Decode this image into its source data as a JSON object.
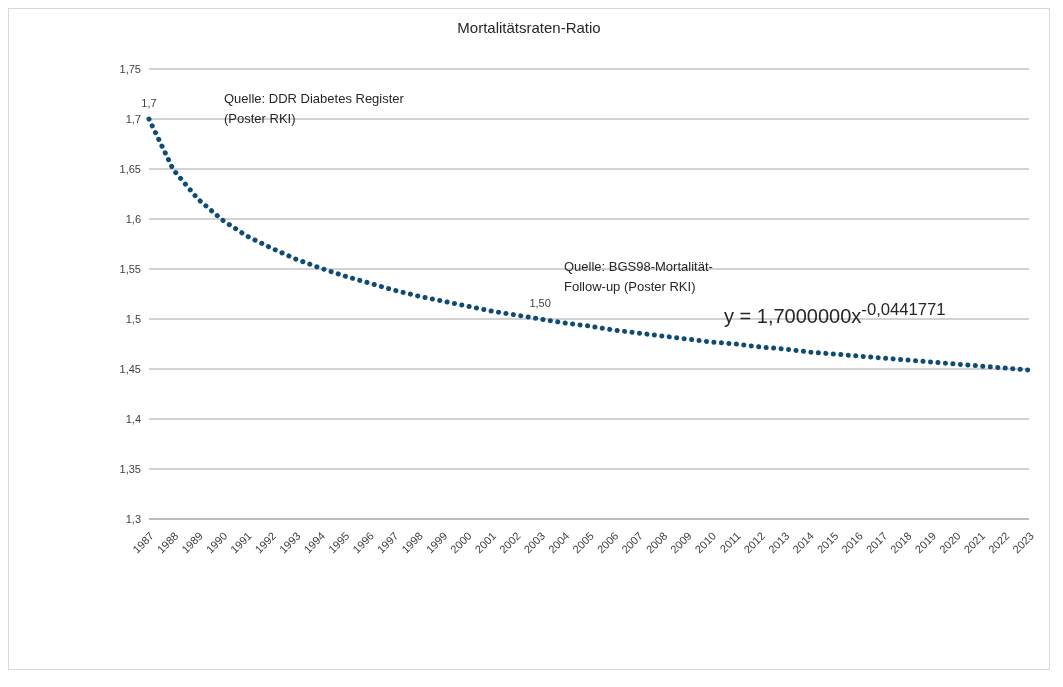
{
  "chart_data": {
    "type": "line",
    "title": "Mortalitätsraten-Ratio",
    "categories": [
      "1987",
      "1988",
      "1989",
      "1990",
      "1991",
      "1992",
      "1993",
      "1994",
      "1995",
      "1996",
      "1997",
      "1998",
      "1999",
      "2000",
      "2001",
      "2002",
      "2003",
      "2004",
      "2005",
      "2006",
      "2007",
      "2008",
      "2009",
      "2010",
      "2011",
      "2012",
      "2013",
      "2014",
      "2015",
      "2016",
      "2017",
      "2018",
      "2019",
      "2020",
      "2021",
      "2022",
      "2023"
    ],
    "series": [
      {
        "color": "#0f4c75",
        "values": [
          1.7,
          1.649,
          1.62,
          1.599,
          1.583,
          1.571,
          1.56,
          1.551,
          1.543,
          1.536,
          1.529,
          1.523,
          1.518,
          1.513,
          1.508,
          1.504,
          1.5,
          1.496,
          1.493,
          1.489,
          1.486,
          1.483,
          1.48,
          1.477,
          1.475,
          1.472,
          1.47,
          1.467,
          1.465,
          1.463,
          1.461,
          1.459,
          1.457,
          1.455,
          1.453,
          1.451,
          1.449
        ],
        "value_labels": [
          "1,7",
          null,
          null,
          null,
          null,
          null,
          null,
          null,
          null,
          null,
          null,
          null,
          null,
          null,
          null,
          null,
          "1,50",
          null,
          null,
          null,
          null,
          null,
          null,
          null,
          null,
          null,
          null,
          null,
          null,
          null,
          null,
          null,
          null,
          null,
          null,
          null,
          null
        ]
      }
    ],
    "ylim": [
      1.3,
      1.75
    ],
    "yticks": [
      {
        "value": 1.3,
        "label": "1,3"
      },
      {
        "value": 1.35,
        "label": "1,35"
      },
      {
        "value": 1.4,
        "label": "1,4"
      },
      {
        "value": 1.45,
        "label": "1,45"
      },
      {
        "value": 1.5,
        "label": "1,5"
      },
      {
        "value": 1.55,
        "label": "1,55"
      },
      {
        "value": 1.6,
        "label": "1,6"
      },
      {
        "value": 1.65,
        "label": "1,65"
      },
      {
        "value": 1.7,
        "label": "1,7"
      },
      {
        "value": 1.75,
        "label": "1,75"
      }
    ],
    "grid": "y",
    "legend": false,
    "marker": "none",
    "line_style": "dotted",
    "annotations": [
      "Quelle: DDR Diabetes Register (Poster RKI)",
      "Quelle: BGS98-Mortalität-Follow-up (Poster RKI)",
      "y = 1,7000000x$^{-0,0441771}$"
    ]
  }
}
